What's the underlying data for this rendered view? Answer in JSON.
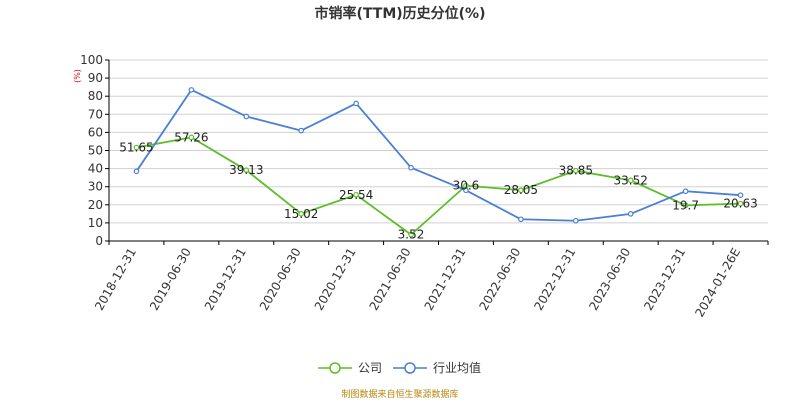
{
  "chart_data": {
    "type": "line",
    "title": "市销率(TTM)历史分位(%)",
    "y_unit": "(%)",
    "ylim": [
      0,
      100
    ],
    "yticks": [
      0,
      10,
      20,
      30,
      40,
      50,
      60,
      70,
      80,
      90,
      100
    ],
    "grid": true,
    "categories": [
      "2018-12-31",
      "2019-06-30",
      "2019-12-31",
      "2020-06-30",
      "2020-12-31",
      "2021-06-30",
      "2021-12-31",
      "2022-06-30",
      "2022-12-31",
      "2023-06-30",
      "2023-12-31",
      "2024-01-26E"
    ],
    "series": [
      {
        "name": "公司",
        "color": "#5bbf27",
        "values": [
          51.65,
          57.26,
          39.13,
          15.02,
          25.54,
          3.52,
          30.6,
          28.05,
          38.85,
          33.52,
          19.7,
          20.63
        ],
        "labels": [
          "51.65",
          "57.26",
          "39.13",
          "15.02",
          "25.54",
          "3.52",
          "30.6",
          "28.05",
          "38.85",
          "33.52",
          "19.7",
          "20.63"
        ]
      },
      {
        "name": "行业均值",
        "color": "#4a7fd6",
        "values": [
          38.5,
          83.5,
          68.8,
          61.0,
          76.0,
          40.5,
          28.0,
          12.0,
          11.2,
          15.0,
          27.5,
          25.3
        ]
      }
    ],
    "legend_position": "bottom"
  },
  "source_text": "制图数据来自恒生聚源数据库"
}
